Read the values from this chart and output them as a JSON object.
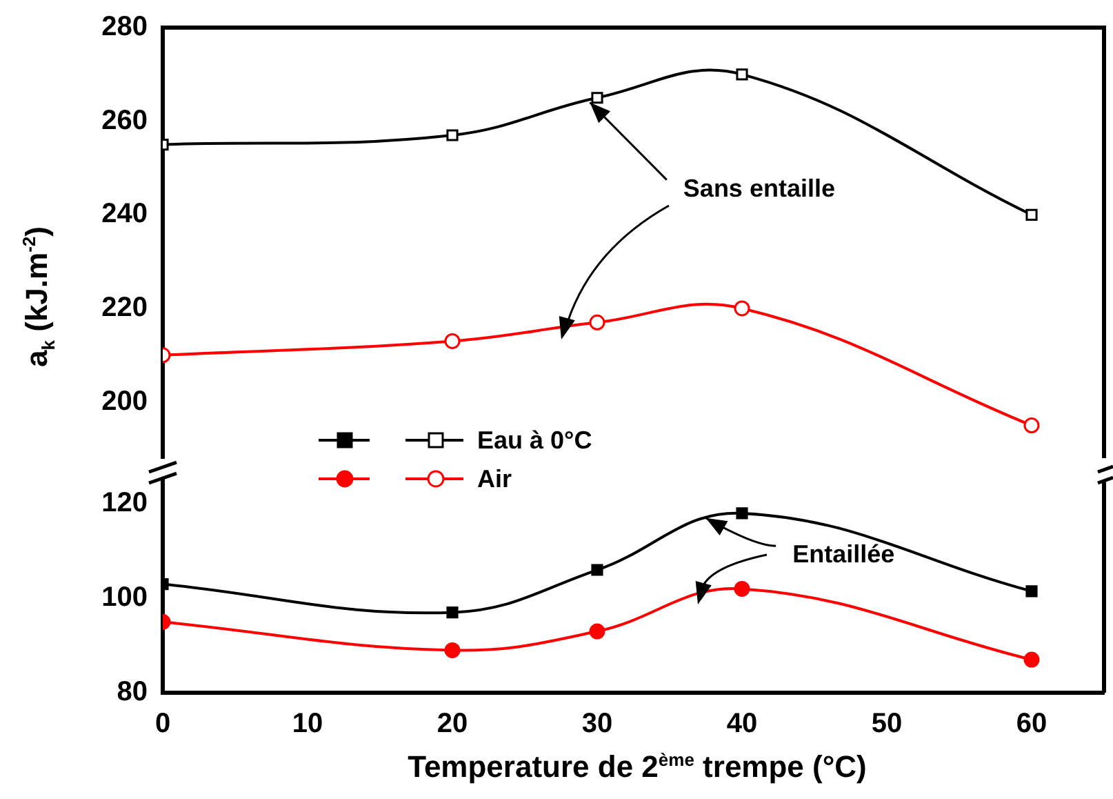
{
  "chart_data": [
    {
      "type": "line",
      "ylabel": "a$_{k}$ (kJ.m$^{-2}$)",
      "x": [
        0,
        20,
        30,
        40,
        60
      ],
      "xlim": [
        0,
        65
      ],
      "ylim": [
        188,
        280
      ],
      "yticks": [
        200,
        220,
        240,
        260,
        280
      ],
      "tick_labels": "y",
      "legend": "bottom left",
      "grid": false,
      "annotations": [
        {
          "text": "Sans entaille",
          "x": 29.5,
          "y": 264
        }
      ],
      "series": [
        {
          "name": "Eau à 0°C",
          "color": "#000000",
          "marker": "square",
          "values": [
            255,
            257,
            265,
            270,
            240
          ]
        },
        {
          "name": "Air",
          "color": "#ff0000",
          "marker": "circle",
          "values": [
            210,
            213,
            217,
            220,
            195
          ]
        }
      ]
    },
    {
      "type": "line",
      "xlabel": "Temperature de 2$^{ème}$ trempe (°C)",
      "x": [
        0,
        20,
        30,
        40,
        60
      ],
      "xlim": [
        0,
        65
      ],
      "xticks": [
        0,
        10,
        20,
        30,
        40,
        50,
        60
      ],
      "ylim": [
        80,
        125
      ],
      "yticks": [
        80,
        100,
        120
      ],
      "grid": false,
      "annotations": [
        {
          "text": "Entaillée",
          "x": 37.5,
          "y": 117
        }
      ],
      "series": [
        {
          "color": "#000000",
          "marker": "square",
          "values": [
            103,
            97,
            106,
            118,
            101.5
          ]
        },
        {
          "color": "#ff0000",
          "marker": "circle",
          "values": [
            95,
            89,
            93,
            102,
            87
          ]
        }
      ]
    }
  ]
}
